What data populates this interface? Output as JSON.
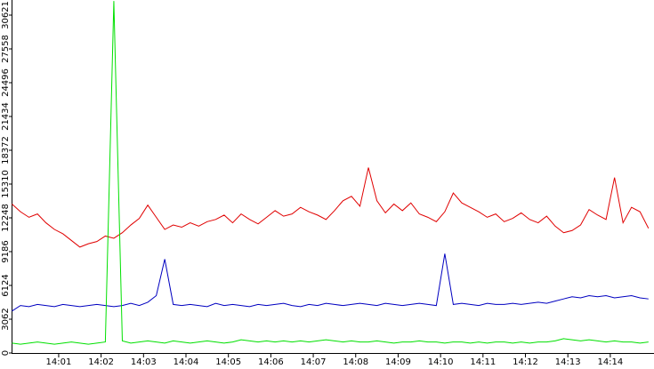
{
  "chart_data": {
    "type": "line",
    "xlim": [
      -0.11,
      15.03
    ],
    "xticks": [
      {
        "value": 1,
        "label": "14:01"
      },
      {
        "value": 2,
        "label": "14:02"
      },
      {
        "value": 3,
        "label": "14:03"
      },
      {
        "value": 4,
        "label": "14:04"
      },
      {
        "value": 5,
        "label": "14:05"
      },
      {
        "value": 6,
        "label": "14:06"
      },
      {
        "value": 7,
        "label": "14:07"
      },
      {
        "value": 8,
        "label": "14:08"
      },
      {
        "value": 9,
        "label": "14:09"
      },
      {
        "value": 10,
        "label": "14:10"
      },
      {
        "value": 11,
        "label": "14:11"
      },
      {
        "value": 12,
        "label": "14:12"
      },
      {
        "value": 13,
        "label": "14:13"
      },
      {
        "value": 14,
        "label": "14:14"
      }
    ],
    "ylim": [
      0,
      31991
    ],
    "yticks": [
      0,
      3062,
      6124,
      9186,
      12248,
      15310,
      18372,
      21434,
      24496,
      27558,
      30621
    ],
    "x": [
      -0.1,
      0.1,
      0.3,
      0.5,
      0.7,
      0.9,
      1.1,
      1.3,
      1.5,
      1.7,
      1.9,
      2.1,
      2.3,
      2.5,
      2.7,
      2.9,
      3.1,
      3.3,
      3.5,
      3.7,
      3.9,
      4.1,
      4.3,
      4.5,
      4.7,
      4.9,
      5.1,
      5.3,
      5.5,
      5.7,
      5.9,
      6.1,
      6.3,
      6.5,
      6.7,
      6.9,
      7.1,
      7.3,
      7.5,
      7.7,
      7.9,
      8.1,
      8.3,
      8.5,
      8.7,
      8.9,
      9.1,
      9.3,
      9.5,
      9.7,
      9.9,
      10.1,
      10.3,
      10.5,
      10.7,
      10.9,
      11.1,
      11.3,
      11.5,
      11.7,
      11.9,
      12.1,
      12.3,
      12.5,
      12.7,
      12.9,
      13.1,
      13.3,
      13.5,
      13.7,
      13.9,
      14.1,
      14.3,
      14.5,
      14.7,
      14.9
    ],
    "series": [
      {
        "color": "#e00000",
        "values": [
          13500,
          12800,
          12300,
          12600,
          11800,
          11200,
          10800,
          10200,
          9600,
          9900,
          10100,
          10600,
          10400,
          10900,
          11600,
          12200,
          13400,
          12300,
          11200,
          11600,
          11400,
          11800,
          11500,
          11900,
          12100,
          12500,
          11800,
          12600,
          12100,
          11700,
          12300,
          12900,
          12400,
          12600,
          13200,
          12800,
          12500,
          12100,
          12900,
          13800,
          14200,
          13300,
          16800,
          13800,
          12700,
          13500,
          12900,
          13600,
          12600,
          12300,
          11900,
          12800,
          14500,
          13600,
          13200,
          12800,
          12300,
          12600,
          11900,
          12200,
          12700,
          12100,
          11800,
          12400,
          11500,
          10900,
          11100,
          11600,
          13000,
          12500,
          12100,
          15900,
          11800,
          13200,
          12800,
          11300
        ]
      },
      {
        "color": "#0000c0",
        "values": [
          3800,
          4300,
          4200,
          4400,
          4300,
          4200,
          4400,
          4300,
          4200,
          4300,
          4400,
          4300,
          4200,
          4300,
          4500,
          4300,
          4600,
          5200,
          8500,
          4400,
          4300,
          4400,
          4300,
          4200,
          4500,
          4300,
          4400,
          4300,
          4200,
          4400,
          4300,
          4400,
          4500,
          4300,
          4200,
          4400,
          4300,
          4500,
          4400,
          4300,
          4400,
          4500,
          4400,
          4300,
          4500,
          4400,
          4300,
          4400,
          4500,
          4400,
          4300,
          9000,
          4400,
          4500,
          4400,
          4300,
          4500,
          4400,
          4400,
          4500,
          4400,
          4500,
          4600,
          4500,
          4700,
          4900,
          5100,
          5000,
          5200,
          5100,
          5200,
          5000,
          5100,
          5200,
          5000,
          4900
        ]
      },
      {
        "color": "#00e000",
        "values": [
          900,
          800,
          900,
          1000,
          900,
          800,
          900,
          1000,
          900,
          800,
          900,
          1000,
          31900,
          1100,
          900,
          1000,
          1100,
          1000,
          900,
          1100,
          1000,
          900,
          1000,
          1100,
          1000,
          900,
          1000,
          1200,
          1100,
          1000,
          1100,
          1000,
          1100,
          1000,
          1100,
          1000,
          1100,
          1200,
          1100,
          1000,
          1100,
          1000,
          1000,
          1100,
          1000,
          900,
          1000,
          1000,
          1100,
          1000,
          1000,
          900,
          1000,
          1000,
          900,
          1000,
          900,
          1000,
          1000,
          900,
          1000,
          900,
          1000,
          1000,
          1100,
          1300,
          1200,
          1100,
          1200,
          1100,
          1000,
          1100,
          1000,
          1000,
          900,
          1000
        ]
      }
    ]
  }
}
